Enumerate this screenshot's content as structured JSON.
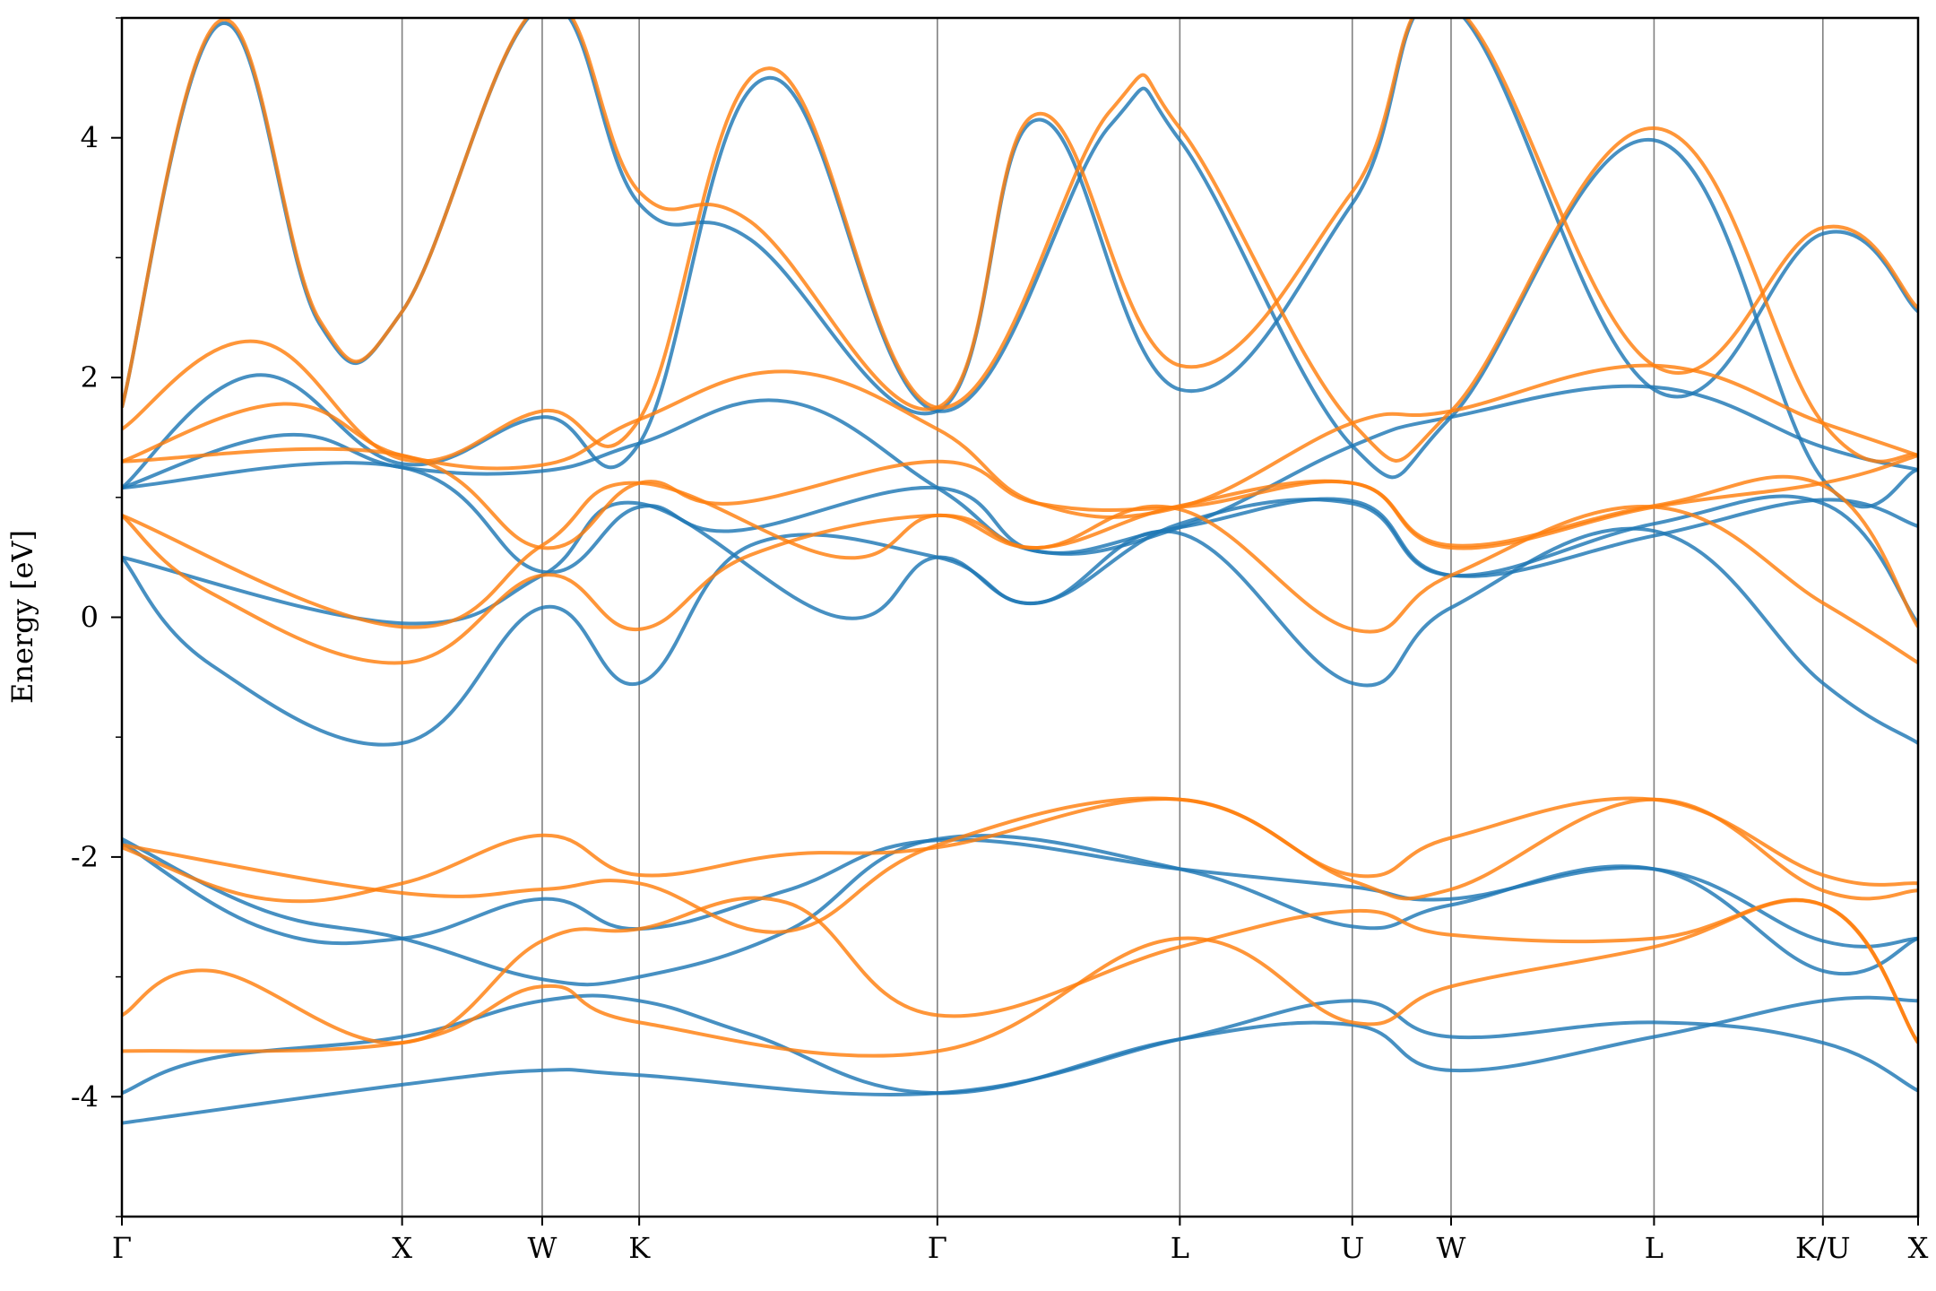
{
  "chart_data": {
    "type": "line",
    "title": "",
    "xlabel": "",
    "ylabel": "Energy [eV]",
    "ylim": [
      -5,
      5
    ],
    "yticks": [
      -4,
      -2,
      0,
      2,
      4
    ],
    "yticks_minor": [
      -5,
      -3,
      -1,
      1,
      3,
      5
    ],
    "grid": false,
    "legend": "none",
    "kpath": {
      "labels": [
        "Γ",
        "X",
        "W",
        "K",
        "Γ",
        "L",
        "U",
        "W",
        "L",
        "K/U",
        "X"
      ],
      "positions": [
        0,
        0.156,
        0.234,
        0.288,
        0.454,
        0.589,
        0.685,
        0.74,
        0.853,
        0.947,
        1.0
      ]
    },
    "colors": {
      "series_a": "#1f77b4",
      "series_b": "#ff7f0e",
      "kline": "#808080"
    },
    "series": [
      {
        "color": "#1f77b4",
        "bands": [
          [
            [
              0,
              -4.22
            ],
            [
              0.156,
              -3.9
            ],
            [
              0.234,
              -3.78
            ],
            [
              0.288,
              -3.82
            ],
            [
              0.454,
              -3.97
            ],
            [
              0.589,
              -3.52
            ],
            [
              0.685,
              -3.2
            ],
            [
              0.74,
              -3.5
            ],
            [
              0.853,
              -3.38
            ],
            [
              0.947,
              -3.55
            ],
            [
              1.0,
              -3.95
            ]
          ],
          [
            [
              0,
              -3.97
            ],
            [
              0.05,
              -3.68
            ],
            [
              0.156,
              -3.5
            ],
            [
              0.234,
              -3.2
            ],
            [
              0.288,
              -3.2
            ],
            [
              0.35,
              -3.48
            ],
            [
              0.454,
              -3.97
            ],
            [
              0.589,
              -3.52
            ],
            [
              0.685,
              -3.4
            ],
            [
              0.74,
              -3.78
            ],
            [
              0.853,
              -3.5
            ],
            [
              0.947,
              -3.2
            ],
            [
              1.0,
              -3.2
            ]
          ],
          [
            [
              0,
              -1.85
            ],
            [
              0.08,
              -2.45
            ],
            [
              0.156,
              -2.68
            ],
            [
              0.234,
              -3.02
            ],
            [
              0.288,
              -3.0
            ],
            [
              0.37,
              -2.62
            ],
            [
              0.454,
              -1.85
            ],
            [
              0.589,
              -2.1
            ],
            [
              0.685,
              -2.58
            ],
            [
              0.74,
              -2.4
            ],
            [
              0.853,
              -2.1
            ],
            [
              0.947,
              -2.95
            ],
            [
              1.0,
              -2.68
            ]
          ],
          [
            [
              0,
              -1.88
            ],
            [
              0.08,
              -2.6
            ],
            [
              0.156,
              -2.68
            ],
            [
              0.234,
              -2.35
            ],
            [
              0.288,
              -2.6
            ],
            [
              0.37,
              -2.28
            ],
            [
              0.454,
              -1.86
            ],
            [
              0.589,
              -2.1
            ],
            [
              0.685,
              -2.25
            ],
            [
              0.74,
              -2.35
            ],
            [
              0.853,
              -2.1
            ],
            [
              0.947,
              -2.7
            ],
            [
              1.0,
              -2.68
            ]
          ],
          [
            [
              0,
              0.5
            ],
            [
              0.05,
              -0.4
            ],
            [
              0.156,
              -1.05
            ],
            [
              0.234,
              0.08
            ],
            [
              0.288,
              -0.55
            ],
            [
              0.35,
              0.6
            ],
            [
              0.454,
              0.5
            ],
            [
              0.51,
              0.12
            ],
            [
              0.589,
              0.7
            ],
            [
              0.685,
              -0.55
            ],
            [
              0.74,
              0.08
            ],
            [
              0.853,
              0.72
            ],
            [
              0.947,
              -0.55
            ],
            [
              1.0,
              -1.05
            ]
          ],
          [
            [
              0,
              0.5
            ],
            [
              0.156,
              -0.05
            ],
            [
              0.234,
              0.35
            ],
            [
              0.288,
              0.95
            ],
            [
              0.4,
              0.0
            ],
            [
              0.454,
              0.5
            ],
            [
              0.51,
              0.12
            ],
            [
              0.589,
              0.78
            ],
            [
              0.685,
              0.95
            ],
            [
              0.74,
              0.35
            ],
            [
              0.853,
              0.78
            ],
            [
              0.947,
              0.95
            ],
            [
              1.0,
              -0.05
            ]
          ],
          [
            [
              0,
              1.08
            ],
            [
              0.156,
              1.25
            ],
            [
              0.234,
              0.38
            ],
            [
              0.288,
              0.92
            ],
            [
              0.34,
              0.72
            ],
            [
              0.454,
              1.08
            ],
            [
              0.51,
              0.55
            ],
            [
              0.589,
              0.75
            ],
            [
              0.685,
              0.97
            ],
            [
              0.74,
              0.35
            ],
            [
              0.853,
              0.68
            ],
            [
              0.947,
              0.98
            ],
            [
              1.0,
              0.76
            ]
          ],
          [
            [
              0,
              1.08
            ],
            [
              0.09,
              1.52
            ],
            [
              0.156,
              1.25
            ],
            [
              0.234,
              1.22
            ],
            [
              0.288,
              1.45
            ],
            [
              0.37,
              1.8
            ],
            [
              0.454,
              1.08
            ],
            [
              0.51,
              0.55
            ],
            [
              0.589,
              0.75
            ],
            [
              0.685,
              1.43
            ],
            [
              0.74,
              1.67
            ],
            [
              0.853,
              1.92
            ],
            [
              0.947,
              1.42
            ],
            [
              1.0,
              1.23
            ]
          ],
          [
            [
              0,
              1.08
            ],
            [
              0.075,
              2.02
            ],
            [
              0.156,
              1.28
            ],
            [
              0.234,
              1.67
            ],
            [
              0.288,
              1.45
            ],
            [
              0.36,
              4.5
            ],
            [
              0.454,
              1.72
            ],
            [
              0.55,
              4.1
            ],
            [
              0.589,
              3.98
            ],
            [
              0.685,
              1.43
            ],
            [
              0.74,
              1.67
            ],
            [
              0.853,
              3.98
            ],
            [
              0.947,
              1.15
            ],
            [
              1.0,
              1.23
            ]
          ],
          [
            [
              0,
              1.75
            ],
            [
              0.055,
              4.95
            ],
            [
              0.11,
              2.45
            ],
            [
              0.156,
              2.55
            ],
            [
              0.234,
              5.1
            ],
            [
              0.288,
              3.45
            ],
            [
              0.35,
              3.15
            ],
            [
              0.454,
              1.72
            ],
            [
              0.51,
              4.15
            ],
            [
              0.589,
              1.9
            ],
            [
              0.685,
              3.45
            ],
            [
              0.74,
              5.1
            ],
            [
              0.853,
              1.9
            ],
            [
              0.947,
              3.2
            ],
            [
              1.0,
              2.55
            ]
          ]
        ]
      },
      {
        "color": "#ff7f0e",
        "bands": [
          [
            [
              0,
              -3.62
            ],
            [
              0.156,
              -3.55
            ],
            [
              0.234,
              -3.08
            ],
            [
              0.288,
              -3.38
            ],
            [
              0.454,
              -3.62
            ],
            [
              0.589,
              -2.68
            ],
            [
              0.685,
              -3.38
            ],
            [
              0.74,
              -3.08
            ],
            [
              0.853,
              -2.75
            ],
            [
              0.947,
              -2.4
            ],
            [
              1.0,
              -3.55
            ]
          ],
          [
            [
              0,
              -3.32
            ],
            [
              0.05,
              -2.95
            ],
            [
              0.156,
              -3.55
            ],
            [
              0.234,
              -2.7
            ],
            [
              0.288,
              -2.6
            ],
            [
              0.37,
              -2.38
            ],
            [
              0.454,
              -3.32
            ],
            [
              0.589,
              -2.75
            ],
            [
              0.685,
              -2.45
            ],
            [
              0.74,
              -2.65
            ],
            [
              0.853,
              -2.68
            ],
            [
              0.947,
              -2.4
            ],
            [
              1.0,
              -3.55
            ]
          ],
          [
            [
              0,
              -1.9
            ],
            [
              0.156,
              -2.3
            ],
            [
              0.234,
              -2.27
            ],
            [
              0.288,
              -2.22
            ],
            [
              0.37,
              -2.62
            ],
            [
              0.454,
              -1.9
            ],
            [
              0.589,
              -1.52
            ],
            [
              0.685,
              -2.2
            ],
            [
              0.74,
              -2.27
            ],
            [
              0.853,
              -1.52
            ],
            [
              0.947,
              -2.28
            ],
            [
              1.0,
              -2.28
            ]
          ],
          [
            [
              0,
              -1.92
            ],
            [
              0.08,
              -2.35
            ],
            [
              0.156,
              -2.22
            ],
            [
              0.234,
              -1.82
            ],
            [
              0.288,
              -2.15
            ],
            [
              0.37,
              -1.98
            ],
            [
              0.454,
              -1.92
            ],
            [
              0.589,
              -1.52
            ],
            [
              0.685,
              -2.15
            ],
            [
              0.74,
              -1.84
            ],
            [
              0.853,
              -1.52
            ],
            [
              0.947,
              -2.15
            ],
            [
              1.0,
              -2.22
            ]
          ],
          [
            [
              0,
              0.85
            ],
            [
              0.05,
              0.2
            ],
            [
              0.156,
              -0.38
            ],
            [
              0.234,
              0.35
            ],
            [
              0.288,
              -0.1
            ],
            [
              0.35,
              0.52
            ],
            [
              0.454,
              0.85
            ],
            [
              0.51,
              0.58
            ],
            [
              0.589,
              0.9
            ],
            [
              0.685,
              -0.1
            ],
            [
              0.74,
              0.35
            ],
            [
              0.853,
              0.92
            ],
            [
              0.947,
              0.12
            ],
            [
              1.0,
              -0.38
            ]
          ],
          [
            [
              0,
              0.85
            ],
            [
              0.156,
              -0.08
            ],
            [
              0.234,
              0.6
            ],
            [
              0.288,
              1.12
            ],
            [
              0.4,
              0.5
            ],
            [
              0.454,
              0.85
            ],
            [
              0.51,
              0.58
            ],
            [
              0.589,
              0.93
            ],
            [
              0.685,
              1.12
            ],
            [
              0.74,
              0.6
            ],
            [
              0.853,
              0.93
            ],
            [
              0.947,
              1.1
            ],
            [
              1.0,
              -0.08
            ]
          ],
          [
            [
              0,
              1.3
            ],
            [
              0.156,
              1.35
            ],
            [
              0.234,
              0.58
            ],
            [
              0.288,
              1.12
            ],
            [
              0.34,
              0.95
            ],
            [
              0.454,
              1.3
            ],
            [
              0.51,
              0.95
            ],
            [
              0.589,
              0.92
            ],
            [
              0.685,
              1.12
            ],
            [
              0.74,
              0.58
            ],
            [
              0.853,
              0.92
            ],
            [
              0.947,
              1.12
            ],
            [
              1.0,
              1.35
            ]
          ],
          [
            [
              0,
              1.3
            ],
            [
              0.09,
              1.78
            ],
            [
              0.156,
              1.35
            ],
            [
              0.234,
              1.27
            ],
            [
              0.288,
              1.65
            ],
            [
              0.37,
              2.05
            ],
            [
              0.454,
              1.57
            ],
            [
              0.51,
              0.95
            ],
            [
              0.589,
              0.92
            ],
            [
              0.685,
              1.62
            ],
            [
              0.74,
              1.72
            ],
            [
              0.853,
              2.1
            ],
            [
              0.947,
              1.62
            ],
            [
              1.0,
              1.35
            ]
          ],
          [
            [
              0,
              1.57
            ],
            [
              0.075,
              2.3
            ],
            [
              0.156,
              1.32
            ],
            [
              0.234,
              1.72
            ],
            [
              0.288,
              1.65
            ],
            [
              0.36,
              4.58
            ],
            [
              0.454,
              1.75
            ],
            [
              0.55,
              4.22
            ],
            [
              0.589,
              4.08
            ],
            [
              0.685,
              1.62
            ],
            [
              0.74,
              1.72
            ],
            [
              0.853,
              4.08
            ],
            [
              0.947,
              1.62
            ],
            [
              1.0,
              1.35
            ]
          ],
          [
            [
              0,
              1.75
            ],
            [
              0.055,
              4.98
            ],
            [
              0.11,
              2.48
            ],
            [
              0.156,
              2.55
            ],
            [
              0.234,
              5.12
            ],
            [
              0.288,
              3.55
            ],
            [
              0.35,
              3.3
            ],
            [
              0.454,
              1.75
            ],
            [
              0.51,
              4.2
            ],
            [
              0.589,
              2.1
            ],
            [
              0.685,
              3.55
            ],
            [
              0.74,
              5.12
            ],
            [
              0.853,
              2.1
            ],
            [
              0.947,
              3.25
            ],
            [
              1.0,
              2.58
            ]
          ]
        ]
      }
    ]
  }
}
